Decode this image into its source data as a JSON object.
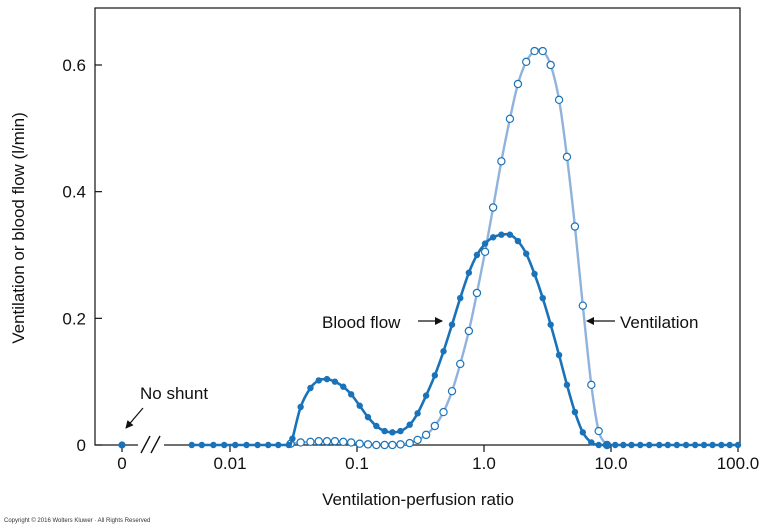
{
  "chart_data": {
    "type": "line",
    "xlabel": "Ventilation-perfusion ratio",
    "ylabel": "Ventilation or blood flow (l/min)",
    "x_scale": "log",
    "x_ticks": [
      "0",
      "0.01",
      "0.1",
      "1.0",
      "10.0",
      "100.0"
    ],
    "y_ticks": [
      "0",
      "0.2",
      "0.4",
      "0.6"
    ],
    "ylim": [
      0,
      0.69
    ],
    "grid": false,
    "colors": {
      "blood_flow": "#1a73b8",
      "ventilation": "#8fb3dd"
    },
    "series": [
      {
        "name": "Blood flow",
        "marker": "filled",
        "x": [
          0.005,
          0.006,
          0.0074,
          0.009,
          0.011,
          0.0135,
          0.0165,
          0.02,
          0.024,
          0.029,
          0.031,
          0.036,
          0.043,
          0.05,
          0.058,
          0.067,
          0.078,
          0.09,
          0.105,
          0.122,
          0.142,
          0.165,
          0.19,
          0.22,
          0.26,
          0.3,
          0.35,
          0.41,
          0.48,
          0.56,
          0.65,
          0.76,
          0.88,
          1.02,
          1.18,
          1.37,
          1.6,
          1.85,
          2.15,
          2.5,
          2.9,
          3.35,
          3.9,
          4.5,
          5.2,
          6.0,
          7.0,
          8.0,
          9.3,
          10.8,
          12.5,
          14.5,
          17,
          20,
          24,
          28,
          33,
          39,
          46,
          54,
          63,
          74,
          86,
          100
        ],
        "y": [
          0,
          0,
          0,
          0,
          0,
          0,
          0,
          0,
          0,
          0,
          0.01,
          0.06,
          0.09,
          0.102,
          0.104,
          0.1,
          0.092,
          0.08,
          0.062,
          0.044,
          0.03,
          0.022,
          0.02,
          0.022,
          0.032,
          0.05,
          0.078,
          0.11,
          0.148,
          0.19,
          0.232,
          0.272,
          0.3,
          0.318,
          0.328,
          0.332,
          0.332,
          0.322,
          0.302,
          0.27,
          0.232,
          0.19,
          0.142,
          0.095,
          0.052,
          0.02,
          0.004,
          0,
          0,
          0,
          0,
          0,
          0,
          0,
          0,
          0,
          0,
          0,
          0,
          0,
          0,
          0,
          0,
          0
        ]
      },
      {
        "name": "Ventilation",
        "marker": "open",
        "x": [
          0.03,
          0.036,
          0.043,
          0.05,
          0.058,
          0.067,
          0.078,
          0.09,
          0.105,
          0.122,
          0.142,
          0.165,
          0.19,
          0.22,
          0.26,
          0.3,
          0.35,
          0.41,
          0.48,
          0.56,
          0.65,
          0.76,
          0.88,
          1.02,
          1.18,
          1.37,
          1.6,
          1.85,
          2.15,
          2.5,
          2.9,
          3.35,
          3.9,
          4.5,
          5.2,
          6.0,
          7.0,
          8.0,
          9.3
        ],
        "y": [
          0.002,
          0.004,
          0.005,
          0.006,
          0.006,
          0.006,
          0.005,
          0.004,
          0.002,
          0.001,
          0,
          0,
          0,
          0.001,
          0.003,
          0.008,
          0.016,
          0.03,
          0.052,
          0.085,
          0.128,
          0.18,
          0.24,
          0.305,
          0.375,
          0.448,
          0.515,
          0.57,
          0.605,
          0.622,
          0.622,
          0.6,
          0.545,
          0.455,
          0.345,
          0.22,
          0.095,
          0.022,
          0
        ]
      }
    ],
    "no_shunt_point": {
      "x": "0",
      "y": 0
    },
    "annotations": [
      {
        "text": "No shunt",
        "target": "no shunt point"
      },
      {
        "text": "Blood flow",
        "target": "Blood flow curve"
      },
      {
        "text": "Ventilation",
        "target": "Ventilation curve"
      }
    ]
  },
  "footer": {
    "copyright": "Copyright © 2016 Wolters Kluwer · All Rights Reserved"
  }
}
